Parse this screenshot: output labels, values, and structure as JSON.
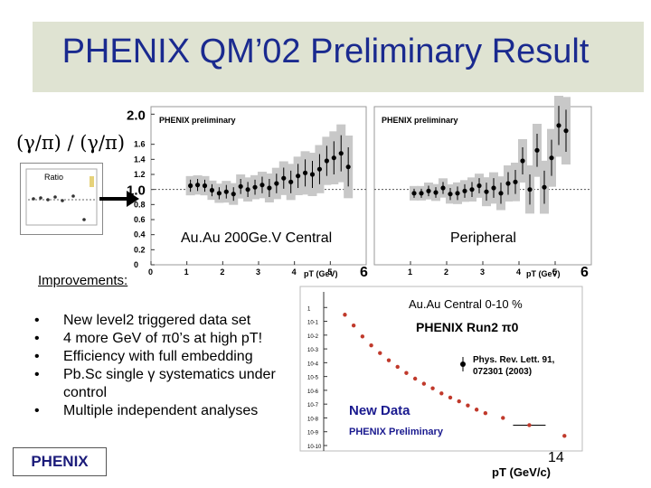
{
  "slide": {
    "title": "PHENIX QM’02 Preliminary Result",
    "ratio_label": "(γ/π) / (γ/π)",
    "page_number": "14",
    "logo_text": "PHENIX"
  },
  "top_left_plot": {
    "panel_title": "PHENIX preliminary",
    "y_ticks": [
      "2.0",
      "1.6",
      "1.4",
      "1.2",
      "1.0",
      "0.8",
      "0.6",
      "0.4",
      "0.2",
      "0"
    ],
    "x_ticks": [
      "0",
      "1",
      "2",
      "3",
      "4",
      "5"
    ],
    "x_label": "pT (GeV)",
    "x_end": "6",
    "caption": "Au.Au 200Ge.V Central"
  },
  "top_right_plot": {
    "panel_title": "PHENIX preliminary",
    "x_ticks": [
      "1",
      "2",
      "3",
      "4",
      "5"
    ],
    "x_label": "pT (GeV)",
    "x_end": "6",
    "caption": "Peripheral"
  },
  "thumbnail": {
    "label": "Ratio"
  },
  "improvements": {
    "heading": "Improvements:",
    "bullets": [
      "New level2 triggered data set",
      "4 more GeV of π0’s at high pT!",
      "Efficiency with full embedding",
      "Pb.Sc single γ systematics under control",
      "Multiple independent analyses"
    ]
  },
  "spectrum_plot": {
    "title": "Au.Au Central 0-10 %",
    "subtitle": "PHENIX Run2 π0",
    "reference": "Phys. Rev. Lett. 91, 072301 (2003)",
    "new_data": "New Data",
    "preliminary": "PHENIX Preliminary",
    "x_label": "pT (GeV/c)",
    "y_ticks": [
      "1",
      "10-1",
      "10-2",
      "10-3",
      "10-4",
      "10-5",
      "10-6",
      "10-7",
      "10-8",
      "10-9",
      "10-10"
    ]
  },
  "chart_data": [
    {
      "type": "scatter",
      "title": "PHENIX preliminary",
      "xlabel": "pT (GeV)",
      "ylabel": "(γ/π) / (γ/π)",
      "xlim": [
        0,
        6
      ],
      "ylim": [
        0,
        2.1
      ],
      "reference_line": 1.0,
      "x": [
        1.1,
        1.3,
        1.5,
        1.7,
        1.9,
        2.1,
        2.3,
        2.5,
        2.7,
        2.9,
        3.1,
        3.3,
        3.5,
        3.7,
        3.9,
        4.1,
        4.3,
        4.5,
        4.7,
        4.9,
        5.1,
        5.3,
        5.5
      ],
      "y": [
        1.05,
        1.06,
        1.05,
        0.99,
        0.95,
        0.97,
        0.94,
        1.04,
        1.0,
        1.03,
        1.06,
        1.02,
        1.08,
        1.15,
        1.1,
        1.18,
        1.22,
        1.2,
        1.27,
        1.38,
        1.42,
        1.48,
        1.3
      ],
      "err": [
        0.08,
        0.08,
        0.08,
        0.08,
        0.08,
        0.09,
        0.09,
        0.1,
        0.1,
        0.1,
        0.11,
        0.12,
        0.13,
        0.14,
        0.15,
        0.16,
        0.18,
        0.18,
        0.2,
        0.2,
        0.22,
        0.24,
        0.26
      ]
    },
    {
      "type": "scatter",
      "title": "PHENIX preliminary",
      "xlabel": "pT (GeV)",
      "xlim": [
        0,
        6
      ],
      "ylim": [
        0,
        2.1
      ],
      "reference_line": 1.0,
      "x": [
        1.1,
        1.3,
        1.5,
        1.7,
        1.9,
        2.1,
        2.3,
        2.5,
        2.7,
        2.9,
        3.1,
        3.3,
        3.5,
        3.7,
        3.9,
        4.1,
        4.3,
        4.5,
        4.7,
        4.9,
        5.1,
        5.3
      ],
      "y": [
        0.95,
        0.95,
        0.98,
        0.96,
        1.02,
        0.94,
        0.95,
        0.98,
        1.0,
        1.05,
        0.97,
        1.02,
        0.95,
        1.08,
        1.1,
        1.38,
        1.0,
        1.52,
        1.03,
        1.42,
        1.85,
        1.78
      ],
      "err": [
        0.06,
        0.06,
        0.07,
        0.07,
        0.08,
        0.08,
        0.09,
        0.09,
        0.1,
        0.1,
        0.12,
        0.13,
        0.14,
        0.15,
        0.16,
        0.18,
        0.2,
        0.22,
        0.22,
        0.24,
        0.26,
        0.28
      ]
    },
    {
      "type": "scatter",
      "title": "Au.Au Central 0-10 %",
      "xlabel": "pT (GeV/c)",
      "y_scale": "log",
      "ylim": [
        1e-10,
        10
      ],
      "xlim": [
        0,
        14
      ],
      "x": [
        1.0,
        1.5,
        2.0,
        2.5,
        3.0,
        3.5,
        4.0,
        4.5,
        5.0,
        5.5,
        6.0,
        6.5,
        7.0,
        7.5,
        8.0,
        8.5,
        9.0,
        10.0,
        11.5,
        13.5
      ],
      "y": [
        0.3,
        0.05,
        0.008,
        0.0018,
        0.0005,
        0.00015,
        5e-05,
        1.8e-05,
        7e-06,
        3e-06,
        1.4e-06,
        6e-07,
        3e-07,
        1.6e-07,
        8e-08,
        4e-08,
        2.2e-08,
        1e-08,
        3e-09,
        5e-10
      ]
    }
  ]
}
